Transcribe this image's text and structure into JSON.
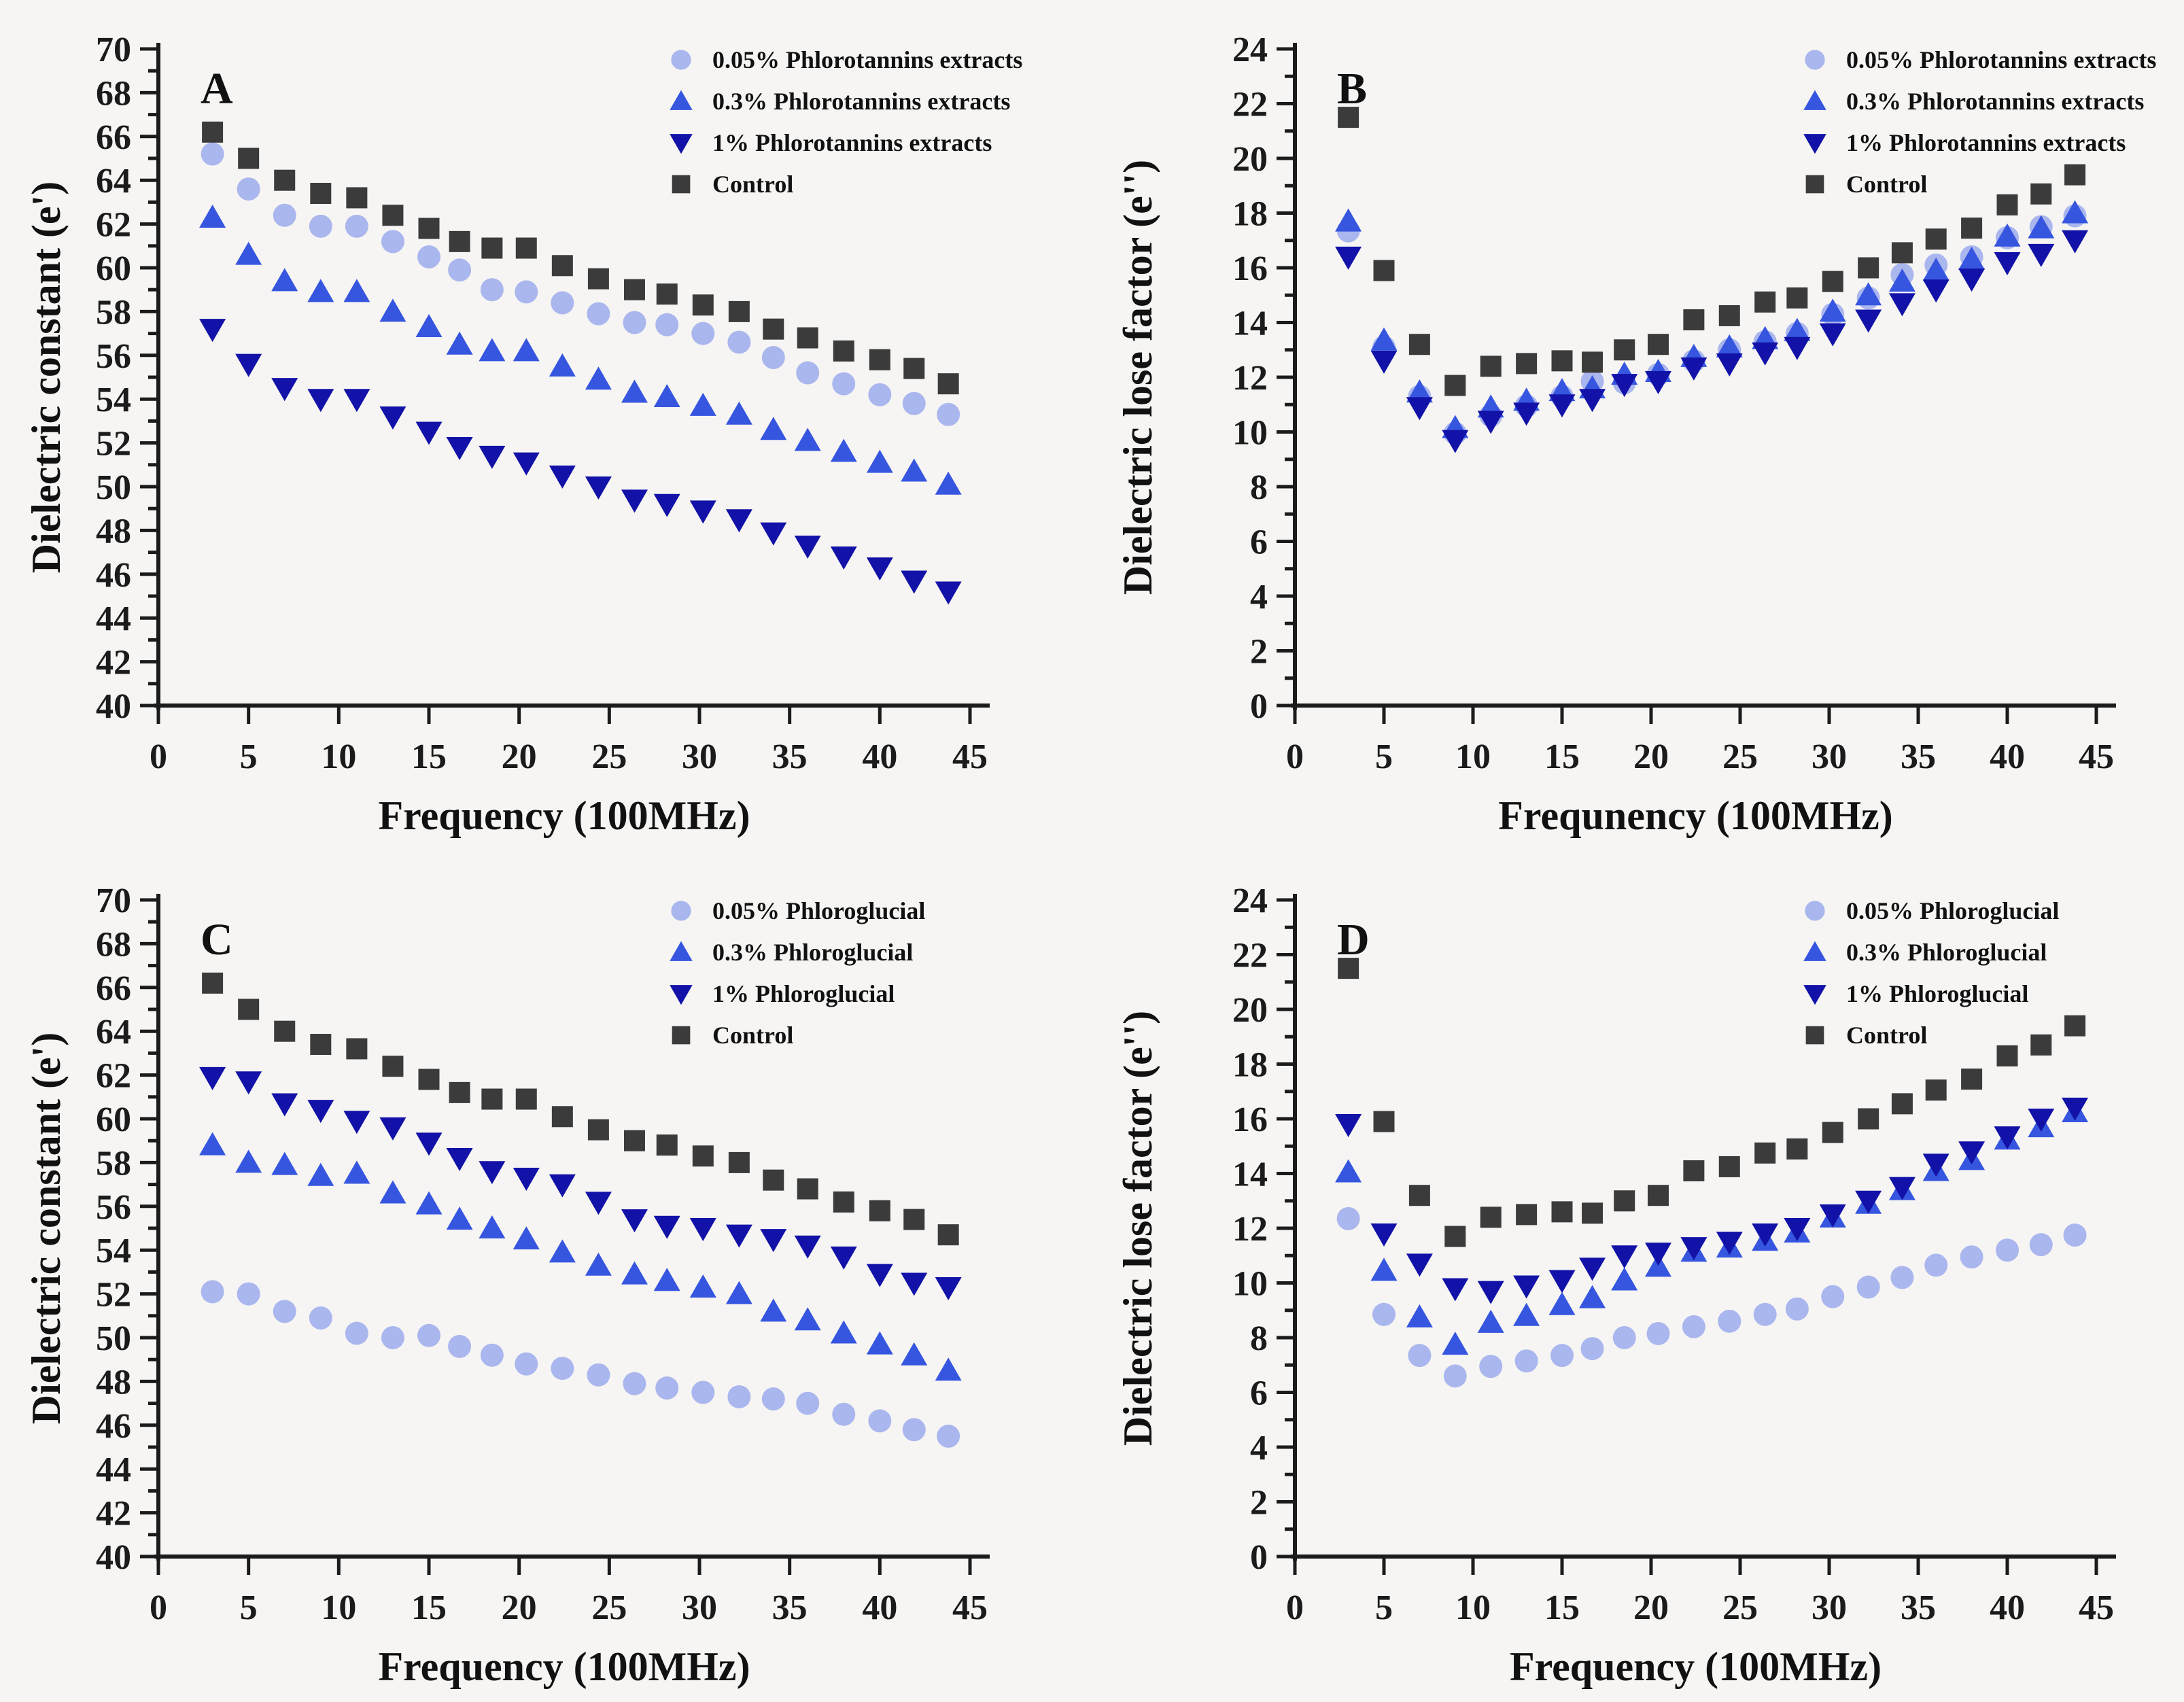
{
  "figure": {
    "background": "#f6f5f3",
    "axis_color": "#1b1b1b",
    "panels": [
      "A",
      "B",
      "C",
      "D"
    ]
  },
  "chart_data": [
    {
      "type": "scatter",
      "panel_label": "A",
      "xlabel": "Frequency (100MHz)",
      "ylabel": "Dielectric constant (e')",
      "xlim": [
        0,
        45
      ],
      "ylim": [
        40,
        70
      ],
      "xticks": [
        0,
        5,
        10,
        15,
        20,
        25,
        30,
        35,
        40,
        45
      ],
      "yticks": [
        40,
        42,
        44,
        46,
        48,
        50,
        52,
        54,
        56,
        58,
        60,
        62,
        64,
        66,
        68,
        70
      ],
      "y_minor_step": 1,
      "grid": false,
      "legend_position": "top-right",
      "x": [
        3,
        5,
        7,
        9,
        11,
        13,
        15,
        16.7,
        18.5,
        20.4,
        22.4,
        24.4,
        26.4,
        28.2,
        30.2,
        32.2,
        34.1,
        36,
        38,
        40,
        41.9,
        43.8
      ],
      "series": [
        {
          "name": "0.05% Phlorotannins extracts",
          "marker": "circle",
          "color": "#aab6ee",
          "values": [
            65.2,
            63.6,
            62.4,
            61.9,
            61.9,
            61.2,
            60.5,
            59.9,
            59.0,
            58.9,
            58.4,
            57.9,
            57.5,
            57.4,
            57.0,
            56.6,
            55.9,
            55.2,
            54.7,
            54.2,
            53.8,
            53.3
          ]
        },
        {
          "name": "0.3% Phlorotannins extracts",
          "marker": "triangle-up",
          "color": "#3656e0",
          "values": [
            62.3,
            60.6,
            59.4,
            58.9,
            58.9,
            58.0,
            57.3,
            56.5,
            56.2,
            56.2,
            55.5,
            54.9,
            54.3,
            54.1,
            53.7,
            53.3,
            52.6,
            52.1,
            51.6,
            51.1,
            50.7,
            50.1
          ]
        },
        {
          "name": "1% Phlorotannins extracts",
          "marker": "triangle-down",
          "color": "#1212a8",
          "values": [
            57.2,
            55.6,
            54.5,
            54.0,
            54.0,
            53.2,
            52.5,
            51.8,
            51.4,
            51.1,
            50.5,
            50.0,
            49.4,
            49.2,
            48.9,
            48.5,
            47.9,
            47.3,
            46.8,
            46.3,
            45.7,
            45.2
          ]
        },
        {
          "name": "Control",
          "marker": "square",
          "color": "#3b3b3b",
          "values": [
            66.2,
            65.0,
            64.0,
            63.4,
            63.2,
            62.4,
            61.8,
            61.2,
            60.9,
            60.9,
            60.1,
            59.5,
            59.0,
            58.8,
            58.3,
            58.0,
            57.2,
            56.8,
            56.2,
            55.8,
            55.4,
            54.7
          ]
        }
      ]
    },
    {
      "type": "scatter",
      "panel_label": "B",
      "xlabel": "Frequnency (100MHz)",
      "ylabel": "Dielectric lose factor (e'')",
      "xlim": [
        0,
        45
      ],
      "ylim": [
        0,
        24
      ],
      "xticks": [
        0,
        5,
        10,
        15,
        20,
        25,
        30,
        35,
        40,
        45
      ],
      "yticks": [
        0,
        2,
        4,
        6,
        8,
        10,
        12,
        14,
        16,
        18,
        20,
        22,
        24
      ],
      "y_minor_step": 1,
      "grid": false,
      "legend_position": "top-right",
      "x": [
        3,
        5,
        7,
        9,
        11,
        13,
        15,
        16.7,
        18.5,
        20.4,
        22.4,
        24.4,
        26.4,
        28.2,
        30.2,
        32.2,
        34.1,
        36,
        38,
        40,
        41.9,
        43.8
      ],
      "series": [
        {
          "name": "0.05% Phlorotannins extracts",
          "marker": "circle",
          "color": "#aab6ee",
          "values": [
            17.35,
            13.1,
            11.3,
            9.95,
            10.6,
            10.95,
            11.3,
            11.85,
            11.8,
            12.1,
            12.6,
            13.0,
            13.3,
            13.6,
            14.3,
            14.9,
            15.75,
            16.1,
            16.4,
            17.1,
            17.5,
            17.9
          ]
        },
        {
          "name": "0.3% Phlorotannins extracts",
          "marker": "triangle-up",
          "color": "#3656e0",
          "values": [
            17.7,
            13.35,
            11.45,
            10.15,
            10.9,
            11.15,
            11.5,
            11.6,
            12.1,
            12.2,
            12.75,
            13.1,
            13.4,
            13.7,
            14.4,
            15.0,
            15.5,
            15.9,
            16.3,
            17.15,
            17.45,
            18.0
          ]
        },
        {
          "name": "1% Phlorotannins extracts",
          "marker": "triangle-down",
          "color": "#1212a8",
          "values": [
            16.4,
            12.6,
            10.9,
            9.7,
            10.4,
            10.7,
            11.0,
            11.2,
            11.75,
            11.85,
            12.35,
            12.5,
            12.9,
            13.1,
            13.6,
            14.1,
            14.7,
            15.2,
            15.6,
            16.2,
            16.5,
            17.0
          ]
        },
        {
          "name": "Control",
          "marker": "square",
          "color": "#3b3b3b",
          "values": [
            21.5,
            15.9,
            13.2,
            11.7,
            12.4,
            12.5,
            12.6,
            12.55,
            13.0,
            13.2,
            14.1,
            14.25,
            14.75,
            14.9,
            15.5,
            16.0,
            16.55,
            17.05,
            17.45,
            18.3,
            18.7,
            19.4
          ]
        }
      ]
    },
    {
      "type": "scatter",
      "panel_label": "C",
      "xlabel": "Frequency (100MHz)",
      "ylabel": "Dielectric constant (e')",
      "xlim": [
        0,
        45
      ],
      "ylim": [
        40,
        70
      ],
      "xticks": [
        0,
        5,
        10,
        15,
        20,
        25,
        30,
        35,
        40,
        45
      ],
      "yticks": [
        40,
        42,
        44,
        46,
        48,
        50,
        52,
        54,
        56,
        58,
        60,
        62,
        64,
        66,
        68,
        70
      ],
      "y_minor_step": 1,
      "grid": false,
      "legend_position": "top-right",
      "x": [
        3,
        5,
        7,
        9,
        11,
        13,
        15,
        16.7,
        18.5,
        20.4,
        22.4,
        24.4,
        26.4,
        28.2,
        30.2,
        32.2,
        34.1,
        36,
        38,
        40,
        41.9,
        43.8
      ],
      "series": [
        {
          "name": "0.05% Phloroglucial",
          "marker": "circle",
          "color": "#aab6ee",
          "values": [
            52.1,
            52.0,
            51.2,
            50.9,
            50.2,
            50.0,
            50.1,
            49.6,
            49.2,
            48.8,
            48.6,
            48.3,
            47.9,
            47.7,
            47.5,
            47.3,
            47.2,
            47.0,
            46.5,
            46.2,
            45.8,
            45.5
          ]
        },
        {
          "name": "0.3% Phloroglucial",
          "marker": "triangle-up",
          "color": "#3656e0",
          "values": [
            58.8,
            58.0,
            57.9,
            57.4,
            57.5,
            56.6,
            56.1,
            55.4,
            55.0,
            54.5,
            53.9,
            53.3,
            52.9,
            52.6,
            52.3,
            52.0,
            51.2,
            50.8,
            50.2,
            49.7,
            49.2,
            48.5
          ]
        },
        {
          "name": "1% Phloroglucial",
          "marker": "triangle-down",
          "color": "#1212a8",
          "values": [
            61.9,
            61.7,
            60.7,
            60.4,
            59.9,
            59.6,
            58.9,
            58.2,
            57.6,
            57.3,
            57.0,
            56.2,
            55.4,
            55.1,
            55.0,
            54.7,
            54.5,
            54.2,
            53.7,
            52.9,
            52.5,
            52.3
          ]
        },
        {
          "name": "Control",
          "marker": "square",
          "color": "#3b3b3b",
          "values": [
            66.2,
            65.0,
            64.0,
            63.4,
            63.2,
            62.4,
            61.8,
            61.2,
            60.9,
            60.9,
            60.1,
            59.5,
            59.0,
            58.8,
            58.3,
            58.0,
            57.2,
            56.8,
            56.2,
            55.8,
            55.4,
            54.7
          ]
        }
      ]
    },
    {
      "type": "scatter",
      "panel_label": "D",
      "xlabel": "Frequency (100MHz)",
      "ylabel": "Dielectric lose factor (e'')",
      "xlim": [
        0,
        45
      ],
      "ylim": [
        0,
        24
      ],
      "xticks": [
        0,
        5,
        10,
        15,
        20,
        25,
        30,
        35,
        40,
        45
      ],
      "yticks": [
        0,
        2,
        4,
        6,
        8,
        10,
        12,
        14,
        16,
        18,
        20,
        22,
        24
      ],
      "y_minor_step": 1,
      "grid": false,
      "legend_position": "top-right",
      "x": [
        3,
        5,
        7,
        9,
        11,
        13,
        15,
        16.7,
        18.5,
        20.4,
        22.4,
        24.4,
        26.4,
        28.2,
        30.2,
        32.2,
        34.1,
        36,
        38,
        40,
        41.9,
        43.8
      ],
      "series": [
        {
          "name": "0.05% Phloroglucial",
          "marker": "circle",
          "color": "#aab6ee",
          "values": [
            12.35,
            8.85,
            7.35,
            6.6,
            6.95,
            7.15,
            7.35,
            7.6,
            8.0,
            8.15,
            8.4,
            8.6,
            8.85,
            9.05,
            9.5,
            9.85,
            10.2,
            10.65,
            10.95,
            11.2,
            11.4,
            11.75
          ]
        },
        {
          "name": "0.3% Phloroglucial",
          "marker": "triangle-up",
          "color": "#3656e0",
          "values": [
            14.05,
            10.45,
            8.75,
            7.75,
            8.55,
            8.8,
            9.2,
            9.45,
            10.1,
            10.6,
            11.15,
            11.3,
            11.55,
            11.85,
            12.4,
            12.9,
            13.4,
            14.1,
            14.5,
            15.25,
            15.7,
            16.25
          ]
        },
        {
          "name": "1% Phloroglucial",
          "marker": "triangle-down",
          "color": "#1212a8",
          "values": [
            15.8,
            11.8,
            10.7,
            9.8,
            9.7,
            9.9,
            10.1,
            10.55,
            11.0,
            11.1,
            11.3,
            11.5,
            11.8,
            12.0,
            12.5,
            13.0,
            13.5,
            14.35,
            14.8,
            15.35,
            16.0,
            16.4
          ]
        },
        {
          "name": "Control",
          "marker": "square",
          "color": "#3b3b3b",
          "values": [
            21.5,
            15.9,
            13.2,
            11.7,
            12.4,
            12.5,
            12.6,
            12.55,
            13.0,
            13.2,
            14.1,
            14.25,
            14.75,
            14.9,
            15.5,
            16.0,
            16.55,
            17.05,
            17.45,
            18.3,
            18.7,
            19.4
          ]
        }
      ]
    }
  ]
}
